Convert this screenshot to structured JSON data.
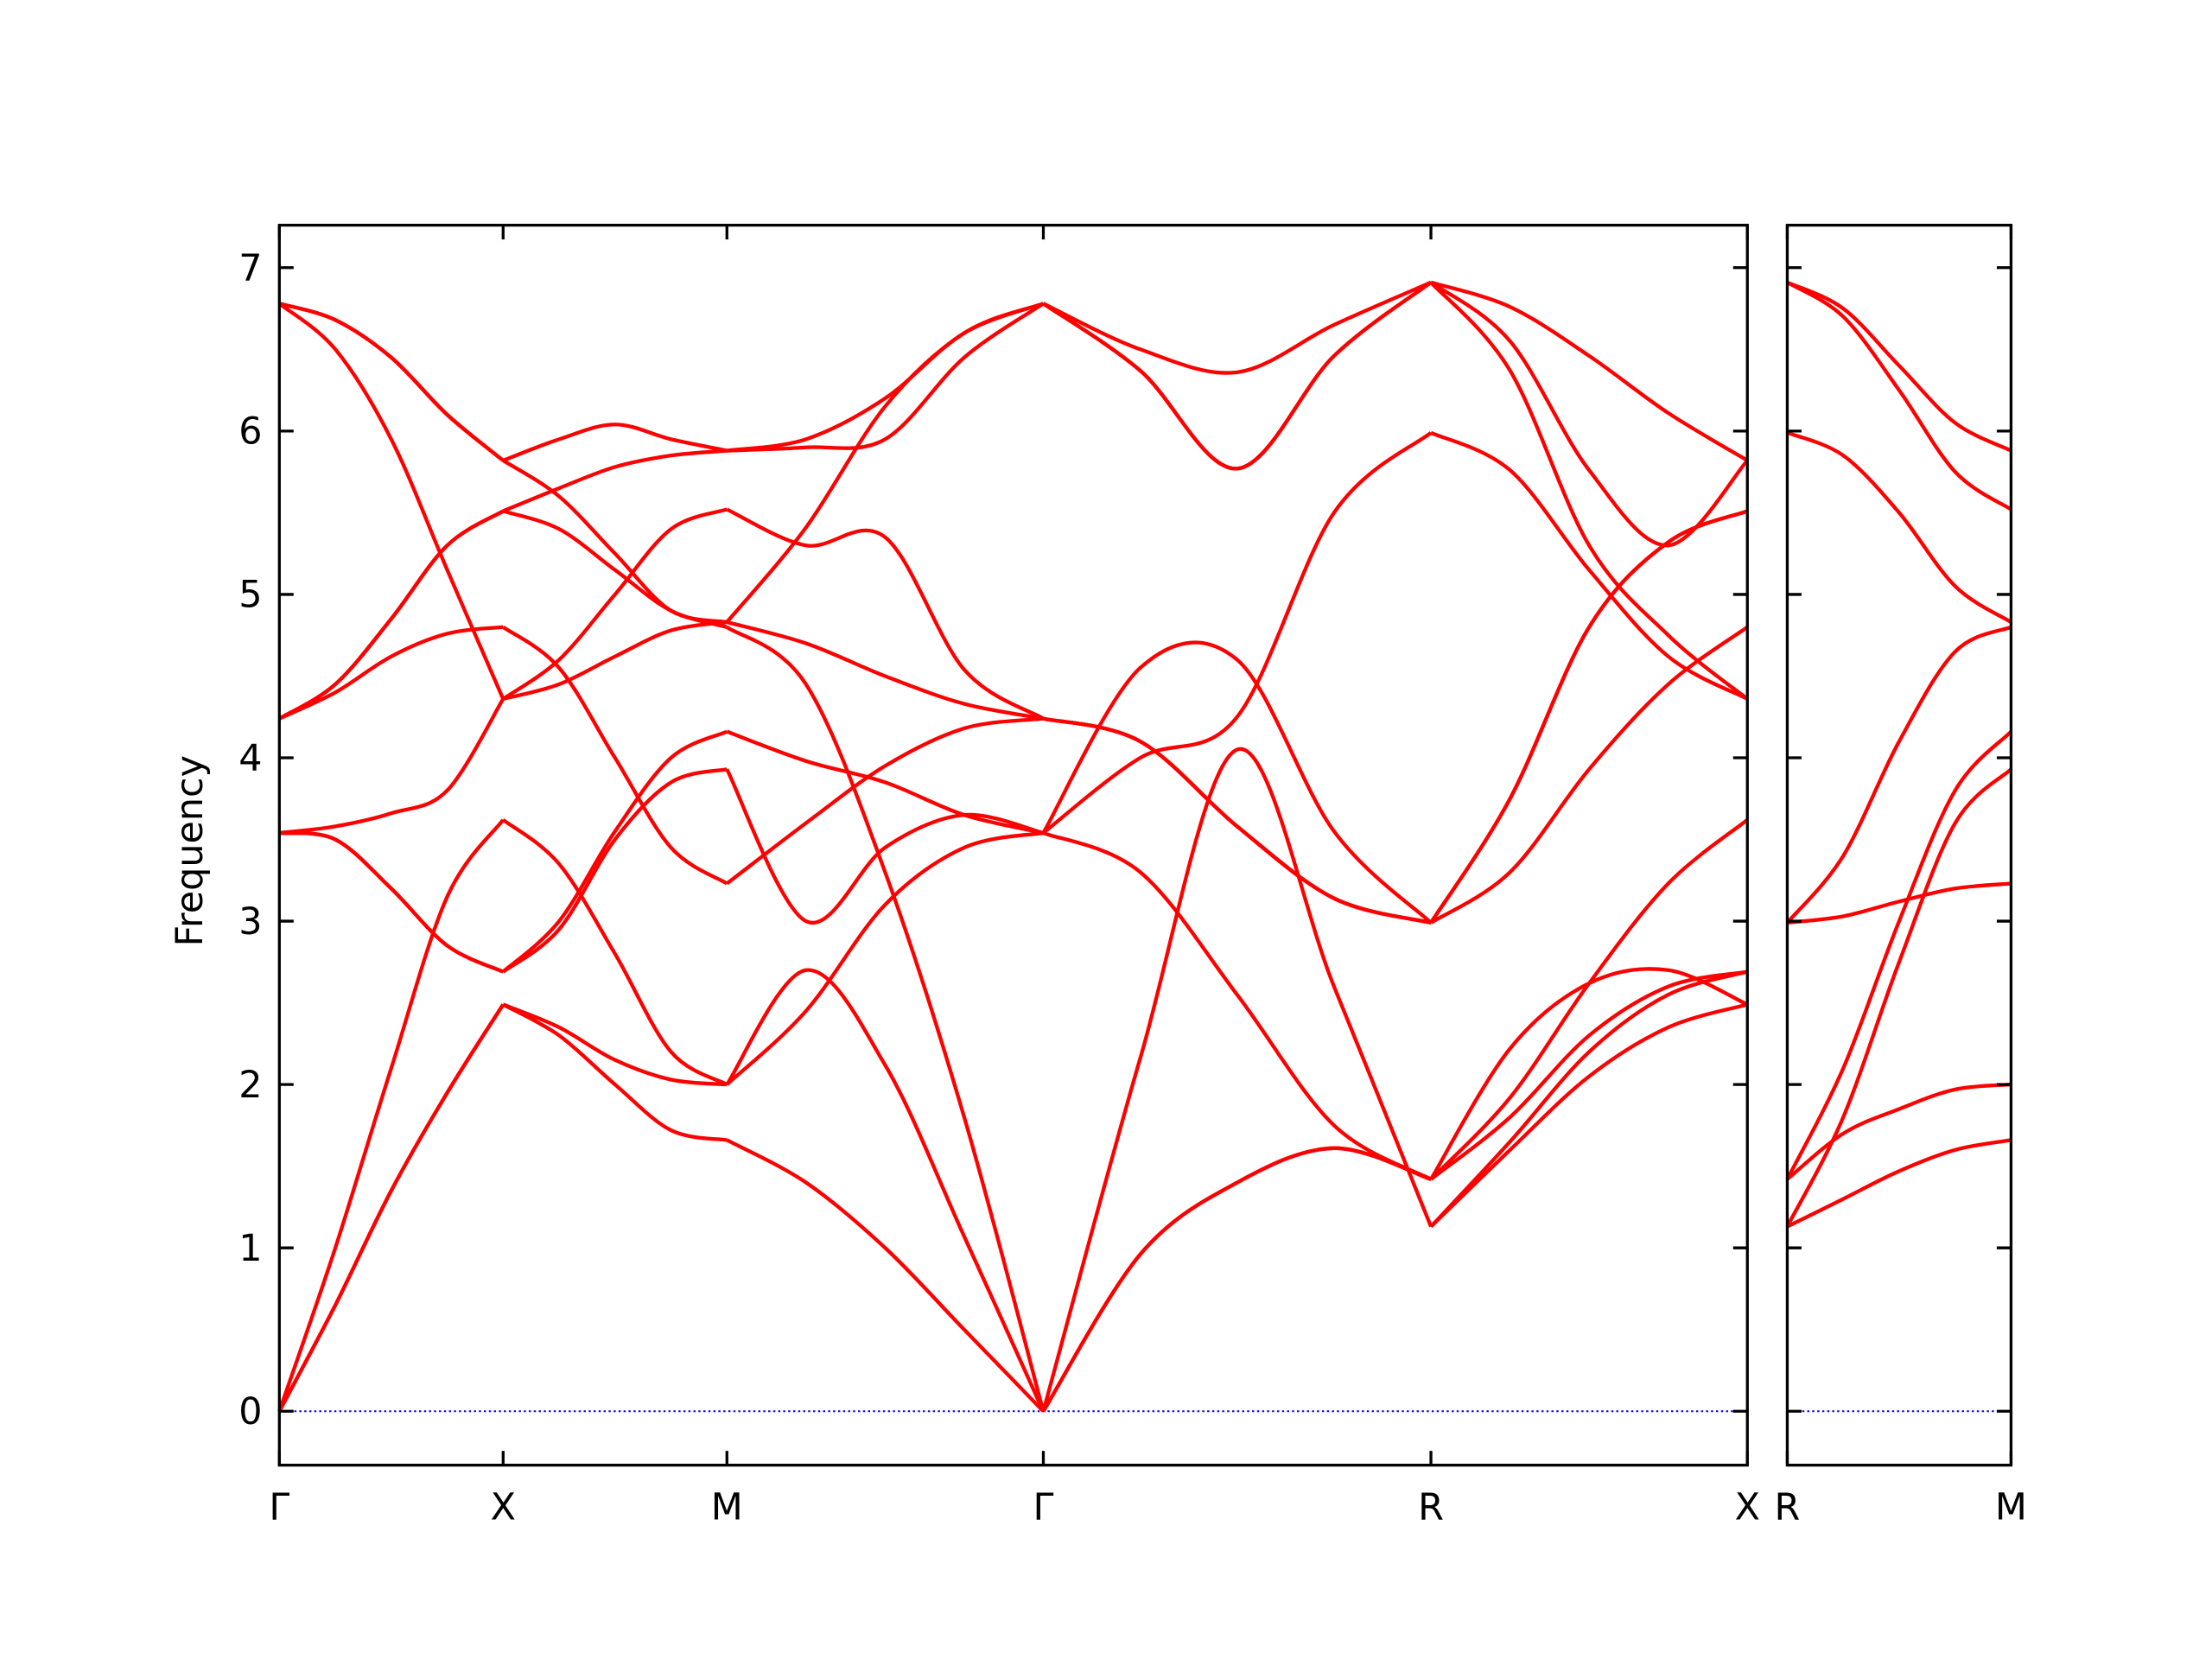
{
  "chart_data": {
    "type": "line",
    "title": "",
    "ylabel": "Frequency",
    "xlabel": "",
    "ylim": [
      -0.33,
      7.26
    ],
    "yticks": [
      0,
      1,
      2,
      3,
      4,
      5,
      6,
      7
    ],
    "band_color": "#ff0000",
    "zero_line_color": "#0000ff",
    "panels": [
      {
        "name": "main",
        "xlim": [
          0,
          3.28
        ],
        "kpoints": [
          {
            "label": "Γ",
            "x": 0
          },
          {
            "label": "X",
            "x": 0.5
          },
          {
            "label": "M",
            "x": 1.0
          },
          {
            "label": "Γ",
            "x": 1.707
          },
          {
            "label": "R",
            "x": 2.573
          },
          {
            "label": "X",
            "x": 3.28
          }
        ],
        "segments": [
          {
            "from": 0,
            "to": 0.5,
            "bands": [
              [
                0,
                0.65,
                1.35,
                1.95,
                2.49
              ],
              [
                0,
                0.65,
                1.35,
                1.95,
                2.49
              ],
              [
                0,
                1.0,
                2.1,
                3.15,
                3.62
              ],
              [
                3.54,
                3.5,
                3.2,
                2.85,
                2.69
              ],
              [
                3.54,
                3.5,
                3.2,
                2.85,
                2.69
              ],
              [
                3.54,
                3.58,
                3.66,
                3.8,
                4.36
              ],
              [
                4.24,
                4.4,
                4.62,
                4.76,
                4.8
              ],
              [
                4.24,
                4.45,
                4.85,
                5.3,
                5.51
              ],
              [
                4.24,
                4.45,
                4.85,
                5.3,
                5.51
              ],
              [
                6.78,
                6.68,
                6.45,
                6.1,
                5.82
              ],
              [
                6.78,
                6.68,
                6.45,
                6.1,
                5.82
              ],
              [
                6.78,
                6.5,
                5.95,
                5.15,
                4.36
              ]
            ]
          },
          {
            "from": 0.5,
            "to": 1.0,
            "bands": [
              [
                2.49,
                2.3,
                2.0,
                1.72,
                1.66
              ],
              [
                2.49,
                2.35,
                2.15,
                2.03,
                2.0
              ],
              [
                2.69,
                3.0,
                3.55,
                4.0,
                4.16
              ],
              [
                2.69,
                2.95,
                3.5,
                3.85,
                3.93
              ],
              [
                3.62,
                3.35,
                2.8,
                2.2,
                2.0
              ],
              [
                4.8,
                4.55,
                4.0,
                3.45,
                3.23
              ],
              [
                4.36,
                4.45,
                4.62,
                4.78,
                4.83
              ],
              [
                4.36,
                4.6,
                5.0,
                5.4,
                5.52
              ],
              [
                5.51,
                5.4,
                5.15,
                4.9,
                4.8
              ],
              [
                5.51,
                5.65,
                5.78,
                5.85,
                5.88
              ],
              [
                5.82,
                5.6,
                5.25,
                4.9,
                4.83
              ],
              [
                5.82,
                5.95,
                6.04,
                5.95,
                5.88
              ]
            ]
          },
          {
            "from": 1.0,
            "to": 1.707,
            "bands": [
              [
                1.66,
                1.4,
                1.0,
                0.5,
                0
              ],
              [
                2.0,
                2.7,
                2.12,
                1.07,
                0
              ],
              [
                2.0,
                2.45,
                3.1,
                3.45,
                3.54
              ],
              [
                3.93,
                3.0,
                3.45,
                3.65,
                3.54
              ],
              [
                3.23,
                3.6,
                3.95,
                4.18,
                4.24
              ],
              [
                4.16,
                3.98,
                3.85,
                3.65,
                3.54
              ],
              [
                4.8,
                4.45,
                3.3,
                1.8,
                0
              ],
              [
                4.83,
                4.7,
                4.5,
                4.33,
                4.24
              ],
              [
                4.83,
                5.41,
                6.15,
                6.6,
                6.78
              ],
              [
                5.52,
                5.3,
                5.35,
                4.54,
                4.24
              ],
              [
                5.88,
                5.95,
                6.2,
                6.6,
                6.78
              ],
              [
                5.88,
                5.9,
                5.95,
                6.45,
                6.78
              ]
            ]
          },
          {
            "from": 1.707,
            "to": 2.573,
            "bands": [
              [
                0,
                0.96,
                1.4,
                1.61,
                1.42
              ],
              [
                0,
                0.96,
                1.4,
                1.61,
                1.42
              ],
              [
                0,
                2.16,
                4.05,
                2.6,
                1.13
              ],
              [
                3.54,
                3.3,
                2.55,
                1.75,
                1.42
              ],
              [
                3.54,
                4.0,
                4.25,
                5.5,
                5.99
              ],
              [
                3.54,
                4.55,
                4.6,
                3.55,
                2.99
              ],
              [
                4.24,
                4.1,
                3.58,
                3.14,
                2.99
              ],
              [
                4.24,
                4.1,
                3.58,
                3.14,
                2.99
              ],
              [
                4.24,
                4.1,
                3.58,
                3.14,
                2.99
              ],
              [
                6.78,
                6.5,
                6.36,
                6.65,
                6.91
              ],
              [
                6.78,
                6.37,
                5.77,
                6.46,
                6.91
              ],
              [
                6.78,
                6.37,
                5.77,
                6.46,
                6.91
              ]
            ]
          },
          {
            "from": 2.573,
            "to": 3.28,
            "bands": [
              [
                6.91,
                6.76,
                6.46,
                6.11,
                5.82
              ],
              [
                6.91,
                6.55,
                5.76,
                5.3,
                5.82
              ],
              [
                6.91,
                6.37,
                5.3,
                4.75,
                4.36
              ],
              [
                5.99,
                5.76,
                5.15,
                4.62,
                4.36
              ],
              [
                2.99,
                3.75,
                4.8,
                5.32,
                5.51
              ],
              [
                2.99,
                3.75,
                4.8,
                5.32,
                5.51
              ],
              [
                2.99,
                3.3,
                3.93,
                4.45,
                4.8
              ],
              [
                1.42,
                1.92,
                2.62,
                3.23,
                3.62
              ],
              [
                1.42,
                2.22,
                2.62,
                2.7,
                2.49
              ],
              [
                1.42,
                1.8,
                2.3,
                2.6,
                2.69
              ],
              [
                1.13,
                1.6,
                2.05,
                2.35,
                2.49
              ],
              [
                1.13,
                1.65,
                2.2,
                2.55,
                2.69
              ]
            ]
          }
        ]
      },
      {
        "name": "side",
        "xlim": [
          0,
          0.5
        ],
        "kpoints": [
          {
            "label": "R",
            "x": 0
          },
          {
            "label": "M",
            "x": 0.5
          }
        ],
        "segments": [
          {
            "from": 0,
            "to": 0.5,
            "bands": [
              [
                6.91,
                6.75,
                6.4,
                6.05,
                5.88
              ],
              [
                6.91,
                6.7,
                6.25,
                5.75,
                5.52
              ],
              [
                5.99,
                5.85,
                5.5,
                5.05,
                4.83
              ],
              [
                2.99,
                3.4,
                4.1,
                4.65,
                4.8
              ],
              [
                2.99,
                3.03,
                3.12,
                3.2,
                3.23
              ],
              [
                1.42,
                2.1,
                3.0,
                3.8,
                4.16
              ],
              [
                1.13,
                1.8,
                2.75,
                3.6,
                3.93
              ],
              [
                1.42,
                1.7,
                1.85,
                1.97,
                2.0
              ],
              [
                1.13,
                1.3,
                1.47,
                1.6,
                1.66
              ]
            ]
          }
        ]
      }
    ]
  }
}
